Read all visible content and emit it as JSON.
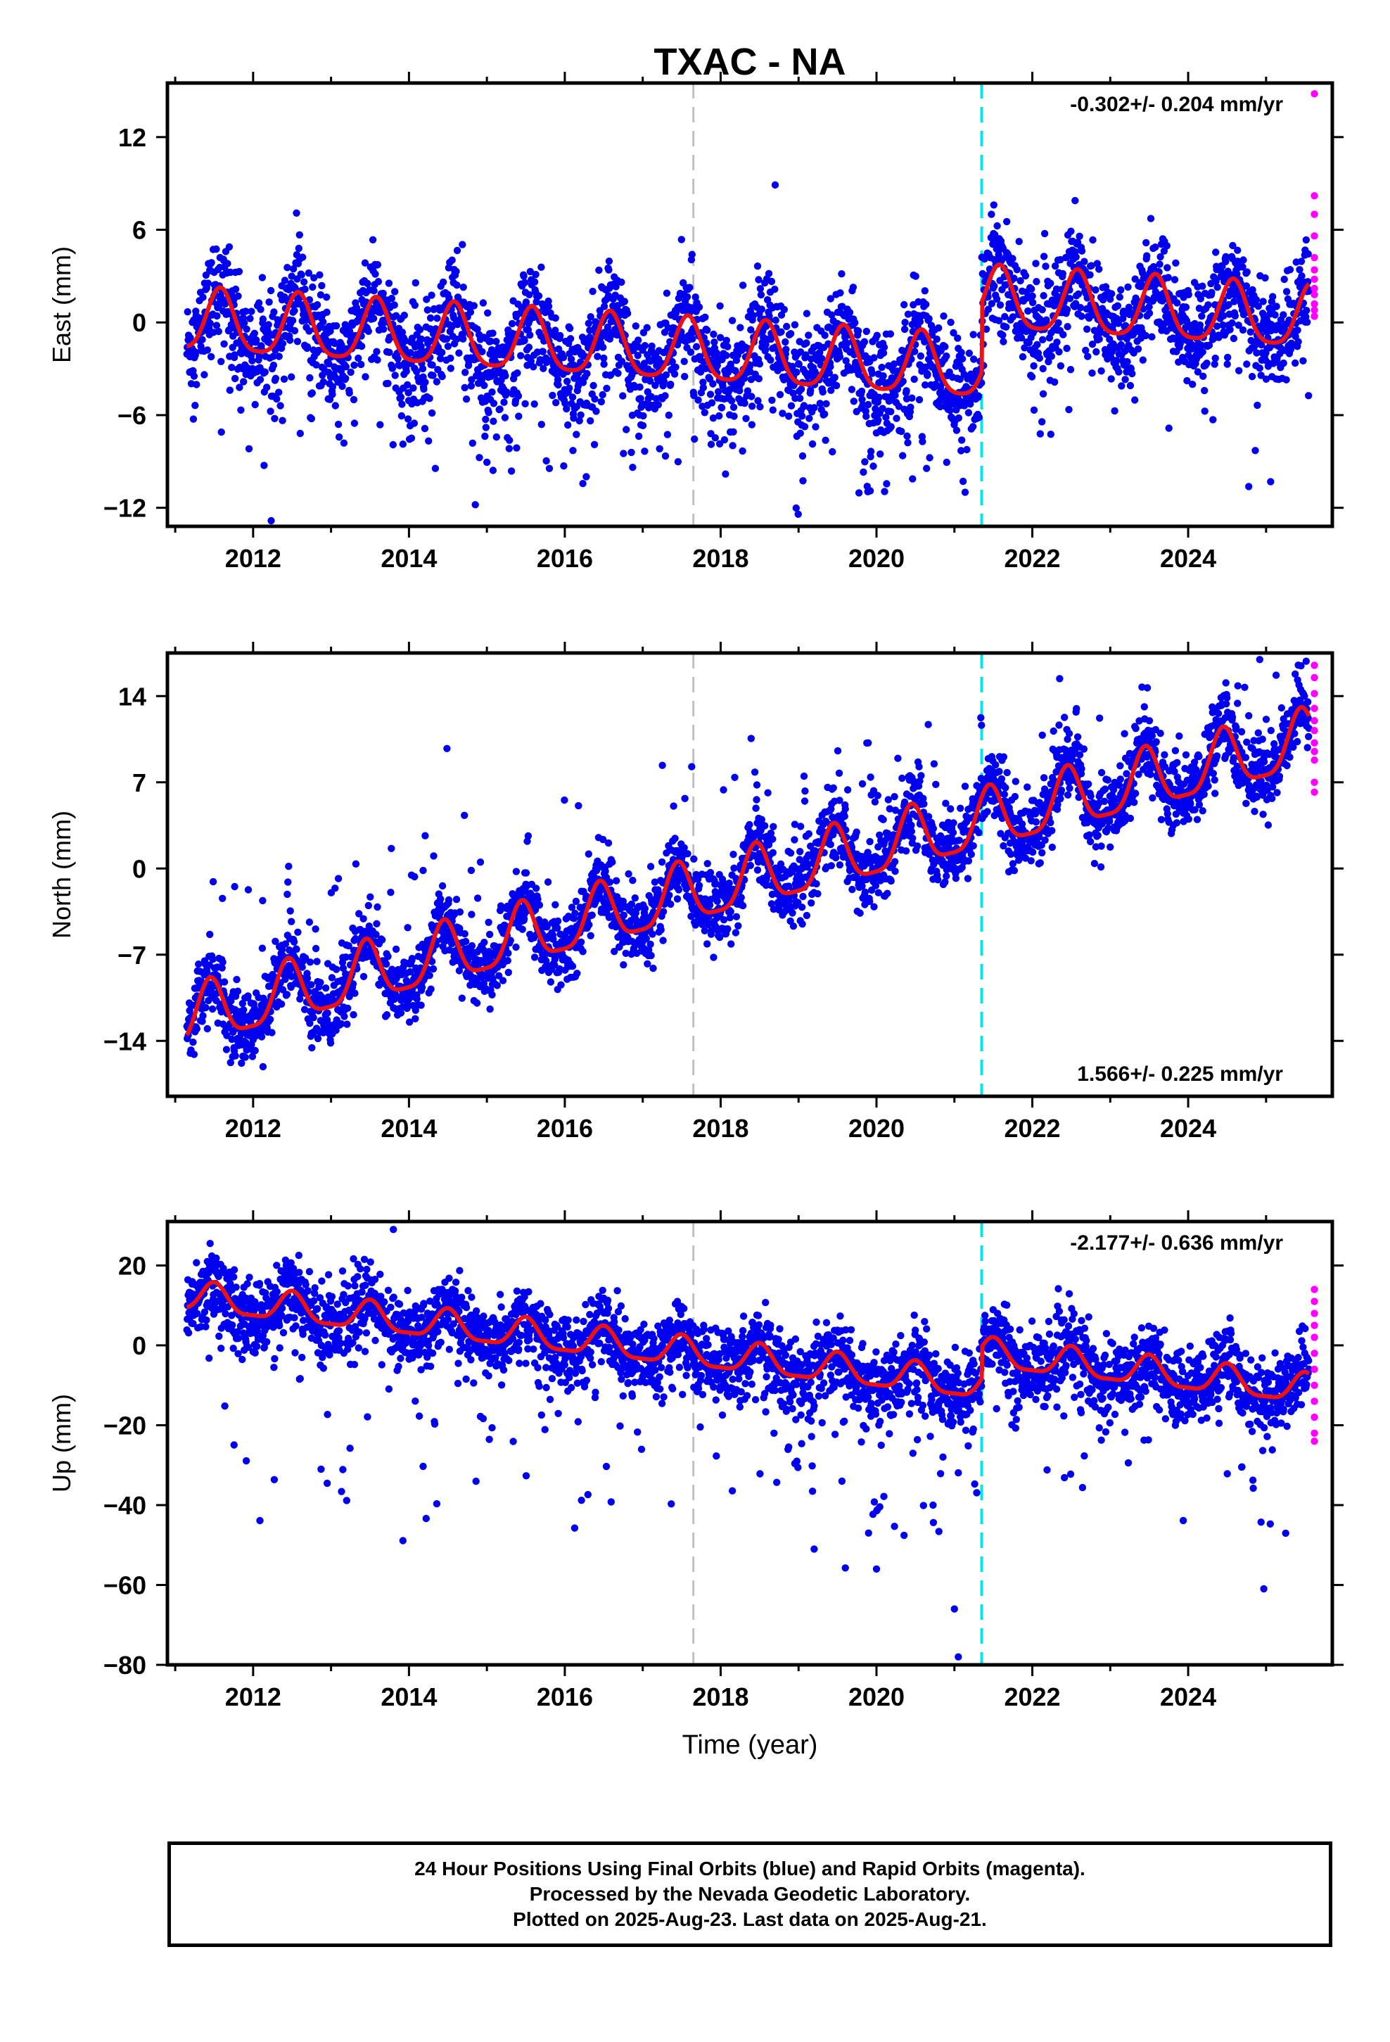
{
  "chart_data": [
    {
      "type": "scatter",
      "panel": "east",
      "title": "TXAC - NA",
      "ylabel": "East (mm)",
      "xlabel": "",
      "xlim": [
        2010.9,
        2025.85
      ],
      "ylim": [
        -13.2,
        15.5
      ],
      "yticks": [
        12,
        6,
        0,
        -6,
        -12
      ],
      "ytick_labels": [
        "12",
        "6",
        "0",
        "−6",
        "−12"
      ],
      "xticks": [
        2012,
        2014,
        2016,
        2018,
        2020,
        2022,
        2024
      ],
      "xtick_labels": [
        "2012",
        "2014",
        "2016",
        "2018",
        "2020",
        "2022",
        "2024"
      ],
      "rate_annotation": "-0.302+/- 0.204 mm/yr",
      "rate_position": "top-right",
      "grid": false,
      "vlines": [
        {
          "x": 2017.65,
          "color": "#c0c0c0",
          "style": "dashed"
        },
        {
          "x": 2021.35,
          "color": "#00e5ee",
          "style": "dashed"
        }
      ],
      "model": {
        "color": "#ee1111",
        "t0": 2011.15,
        "t1": 2025.55,
        "offset": 0.0,
        "rate": -0.302,
        "annual_amp": 2.0,
        "annual_phase": 2011.58,
        "semi_amp": 0.4,
        "steps": [
          {
            "t": 2017.65,
            "dy": 0.0
          },
          {
            "t": 2021.35,
            "dy": 4.5
          }
        ]
      },
      "final_orbits": {
        "color": "#0000ee",
        "noise": 1.6,
        "outlier_rate": 0.08,
        "outlier_scale": 4.0,
        "outlier_sign": -1,
        "windows": [
          [
            2013.9,
            2021.3
          ]
        ]
      },
      "rapid_orbits": {
        "color": "#ff00ff",
        "t": 2025.62,
        "values": [
          14.8,
          8.2,
          7.0,
          5.6,
          4.2,
          3.4,
          2.8,
          2.2,
          1.8,
          1.2,
          0.8,
          0.4
        ]
      },
      "extra_points": [
        {
          "x": 2018.7,
          "y": 8.9
        }
      ]
    },
    {
      "type": "scatter",
      "panel": "north",
      "title": "",
      "ylabel": "North (mm)",
      "xlabel": "",
      "xlim": [
        2010.9,
        2025.85
      ],
      "ylim": [
        -18.5,
        17.5
      ],
      "yticks": [
        14,
        7,
        0,
        -7,
        -14
      ],
      "ytick_labels": [
        "14",
        "7",
        "0",
        "−7",
        "−14"
      ],
      "xticks": [
        2012,
        2014,
        2016,
        2018,
        2020,
        2022,
        2024
      ],
      "xtick_labels": [
        "2012",
        "2014",
        "2016",
        "2018",
        "2020",
        "2022",
        "2024"
      ],
      "rate_annotation": "1.566+/- 0.225 mm/yr",
      "rate_position": "bottom-right",
      "grid": false,
      "vlines": [
        {
          "x": 2017.65,
          "color": "#c0c0c0",
          "style": "dashed"
        },
        {
          "x": 2021.35,
          "color": "#00e5ee",
          "style": "dashed"
        }
      ],
      "model": {
        "color": "#ee1111",
        "t0": 2011.15,
        "t1": 2025.55,
        "offset": -12.3,
        "rate": 1.566,
        "annual_amp": 2.4,
        "annual_phase": 2011.45,
        "semi_amp": 0.6,
        "steps": [
          {
            "t": 2017.65,
            "dy": 0.0
          },
          {
            "t": 2021.35,
            "dy": 0.0
          }
        ]
      },
      "final_orbits": {
        "color": "#0000ee",
        "noise": 1.4,
        "outlier_rate": 0.06,
        "outlier_scale": 4.5,
        "outlier_sign": 1,
        "windows": [
          [
            2018.9,
            2021.3
          ]
        ]
      },
      "rapid_orbits": {
        "color": "#ff00ff",
        "t": 2025.62,
        "values": [
          16.5,
          15.5,
          14.2,
          13.0,
          12.0,
          11.2,
          10.2,
          9.5,
          8.8,
          7.0,
          6.2
        ]
      },
      "extra_points": []
    },
    {
      "type": "scatter",
      "panel": "up",
      "title": "",
      "ylabel": "Up (mm)",
      "xlabel": "Time (year)",
      "xlim": [
        2010.9,
        2025.85
      ],
      "ylim": [
        -80,
        31
      ],
      "yticks": [
        20,
        0,
        -20,
        -40,
        -60,
        -80
      ],
      "ytick_labels": [
        "20",
        "0",
        "−20",
        "−40",
        "−60",
        "−80"
      ],
      "xticks": [
        2012,
        2014,
        2016,
        2018,
        2020,
        2022,
        2024
      ],
      "xtick_labels": [
        "2012",
        "2014",
        "2016",
        "2018",
        "2020",
        "2022",
        "2024"
      ],
      "rate_annotation": "-2.177+/- 0.636 mm/yr",
      "rate_position": "top-right",
      "grid": false,
      "vlines": [
        {
          "x": 2017.65,
          "color": "#c0c0c0",
          "style": "dashed"
        },
        {
          "x": 2021.35,
          "color": "#00e5ee",
          "style": "dashed"
        }
      ],
      "model": {
        "color": "#ee1111",
        "t0": 2011.15,
        "t1": 2025.55,
        "offset": 12.0,
        "rate": -2.177,
        "annual_amp": 3.6,
        "annual_phase": 2011.5,
        "semi_amp": 1.0,
        "steps": [
          {
            "t": 2017.65,
            "dy": 0.0
          },
          {
            "t": 2021.35,
            "dy": 8.0
          }
        ]
      },
      "final_orbits": {
        "color": "#0000ee",
        "noise": 4.5,
        "outlier_rate": 0.07,
        "outlier_scale": 18.0,
        "outlier_sign": -1,
        "windows": [
          [
            2018.8,
            2021.3
          ]
        ]
      },
      "rapid_orbits": {
        "color": "#ff00ff",
        "t": 2025.62,
        "values": [
          14,
          11,
          8,
          5,
          2,
          -2,
          -6,
          -10,
          -14,
          -18,
          -22,
          -24
        ]
      },
      "extra_points": [
        {
          "x": 2013.8,
          "y": 29
        },
        {
          "x": 2021.05,
          "y": -78
        },
        {
          "x": 2020.0,
          "y": -56
        },
        {
          "x": 2019.2,
          "y": -51
        },
        {
          "x": 2021.0,
          "y": -66
        }
      ]
    }
  ],
  "footer": {
    "line1": "24 Hour Positions Using Final Orbits (blue) and Rapid Orbits (magenta).",
    "line2": "Processed by the Nevada Geodetic Laboratory.",
    "line3": "Plotted on 2025-Aug-23. Last data on 2025-Aug-21."
  }
}
